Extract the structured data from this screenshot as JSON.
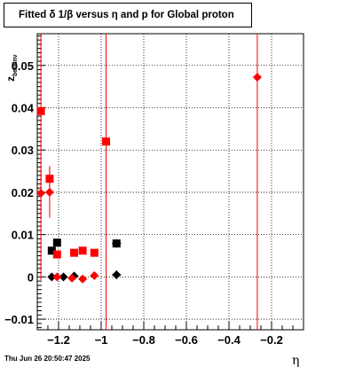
{
  "title": "Fitted δ 1/β versus η and p for Global proton",
  "timestamp": "Thu Jun 26 20:50:47 2025",
  "chart_data": {
    "type": "scatter",
    "title": "Fitted δ 1/β versus η and p for Global proton",
    "xlabel": "η",
    "ylabel": "z_{betainv}",
    "xlim": [
      -1.3,
      -0.05
    ],
    "ylim": [
      -0.0125,
      0.0575
    ],
    "x_ticks": [
      -1.2,
      -1,
      -0.8,
      -0.6,
      -0.4,
      -0.2
    ],
    "x_tick_labels": [
      "−1.2",
      "−1",
      "−0.8",
      "−0.6",
      "−0.4",
      "−0.2"
    ],
    "y_ticks": [
      -0.01,
      0,
      0.01,
      0.02,
      0.03,
      0.04,
      0.05
    ],
    "y_tick_labels": [
      "−0.01",
      "0",
      "0.01",
      "0.02",
      "0.03",
      "0.04",
      "0.05"
    ],
    "grid": true,
    "series": [
      {
        "marker": "square",
        "color": "#000000",
        "points": [
          {
            "x": -1.232,
            "y": 0.0062,
            "xerr": 0.012,
            "yerr": 0.0008
          },
          {
            "x": -1.207,
            "y": 0.0081,
            "xerr": 0.012,
            "yerr": 0.0008
          },
          {
            "x": -0.928,
            "y": 0.0079,
            "xerr": 0.022,
            "yerr": 0.001
          }
        ]
      },
      {
        "marker": "diamond",
        "color": "#000000",
        "points": [
          {
            "x": -1.232,
            "y": 0.0,
            "xerr": 0.012,
            "yerr": 0.0005
          },
          {
            "x": -1.177,
            "y": 0.0,
            "xerr": 0.012,
            "yerr": 0.0005
          },
          {
            "x": -1.127,
            "y": 0.0002,
            "xerr": 0.012,
            "yerr": 0.0005
          },
          {
            "x": -0.928,
            "y": 0.0005,
            "xerr": 0.022,
            "yerr": 0.001
          }
        ]
      },
      {
        "marker": "square",
        "color": "#ff0000",
        "points": [
          {
            "x": -1.283,
            "y": 0.0392,
            "xerr": 0,
            "yerr": 0.04
          },
          {
            "x": -1.242,
            "y": 0.0232,
            "xerr": 0,
            "yerr": 0.003
          },
          {
            "x": -1.207,
            "y": 0.0053,
            "xerr": 0,
            "yerr": 0.0004
          },
          {
            "x": -1.127,
            "y": 0.0057,
            "xerr": 0,
            "yerr": 0.0004
          },
          {
            "x": -1.087,
            "y": 0.0062,
            "xerr": 0,
            "yerr": 0.0004
          },
          {
            "x": -1.032,
            "y": 0.0057,
            "xerr": 0,
            "yerr": 0.0004
          },
          {
            "x": -0.977,
            "y": 0.032,
            "xerr": 0,
            "yerr": 0.06
          }
        ]
      },
      {
        "marker": "diamond",
        "color": "#ff0000",
        "points": [
          {
            "x": -1.283,
            "y": 0.0198,
            "xerr": 0,
            "yerr": 0.006
          },
          {
            "x": -1.242,
            "y": 0.02,
            "xerr": 0,
            "yerr": 0.006
          },
          {
            "x": -1.207,
            "y": 0.0,
            "xerr": 0,
            "yerr": 0.0005
          },
          {
            "x": -1.137,
            "y": -0.0003,
            "xerr": 0,
            "yerr": 0.0005
          },
          {
            "x": -1.087,
            "y": -0.0005,
            "xerr": 0,
            "yerr": 0.0005
          },
          {
            "x": -1.032,
            "y": 0.0003,
            "xerr": 0,
            "yerr": 0.0005
          },
          {
            "x": -0.267,
            "y": 0.0472,
            "xerr": 0,
            "yerr": 0.06
          }
        ]
      }
    ]
  }
}
